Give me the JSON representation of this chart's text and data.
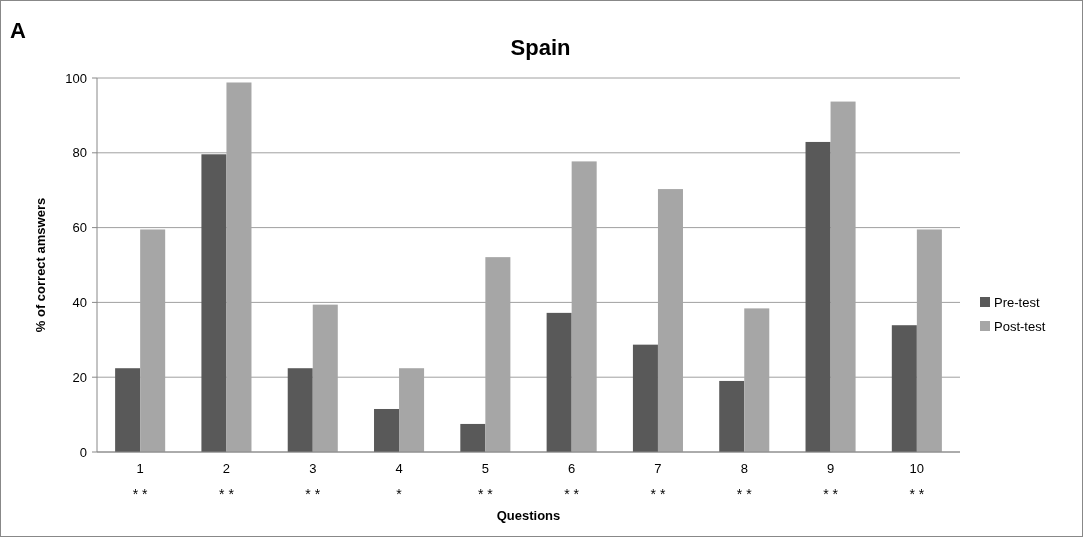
{
  "chart_data": {
    "type": "bar",
    "title": "Spain",
    "xlabel": "Questions",
    "ylabel": "% of correct amswers",
    "categories": [
      "1",
      "2",
      "3",
      "4",
      "5",
      "6",
      "7",
      "8",
      "9",
      "10"
    ],
    "series": [
      {
        "name": "Pre-test",
        "color": "#595959",
        "values": [
          22.4,
          79.6,
          22.4,
          11.5,
          7.5,
          37.2,
          28.7,
          19.0,
          82.9,
          33.9
        ]
      },
      {
        "name": "Post-test",
        "color": "#a6a6a6",
        "values": [
          59.5,
          98.8,
          39.4,
          22.4,
          52.1,
          77.7,
          70.3,
          38.4,
          93.7,
          59.5
        ]
      }
    ],
    "ylim": [
      0,
      100
    ],
    "yticks": [
      0,
      20,
      40,
      60,
      80,
      100
    ],
    "grid": "y",
    "legend": "right",
    "annotations": [
      "A",
      "* *",
      "* *",
      "* *",
      "*",
      "* *",
      "* *",
      "* *",
      "* *",
      "* *",
      "* *"
    ]
  }
}
